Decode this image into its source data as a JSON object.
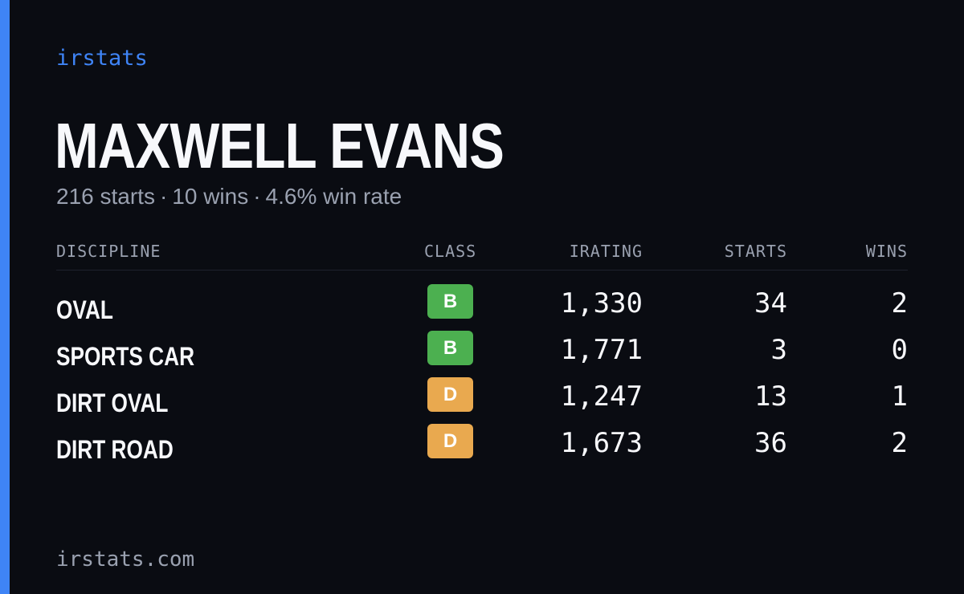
{
  "brand": "irstats",
  "driver": {
    "name": "MAXWELL EVANS"
  },
  "summary": {
    "starts": "216 starts",
    "wins": "10 wins",
    "win_rate": "4.6% win rate",
    "separator": "·"
  },
  "table": {
    "headers": {
      "discipline": "DISCIPLINE",
      "class": "CLASS",
      "irating": "IRATING",
      "starts": "STARTS",
      "wins": "WINS"
    },
    "rows": [
      {
        "discipline": "OVAL",
        "class": "B",
        "class_color": "#4cb050",
        "irating": "1,330",
        "starts": "34",
        "wins": "2"
      },
      {
        "discipline": "SPORTS CAR",
        "class": "B",
        "class_color": "#4cb050",
        "irating": "1,771",
        "starts": "3",
        "wins": "0"
      },
      {
        "discipline": "DIRT OVAL",
        "class": "D",
        "class_color": "#e9a94f",
        "irating": "1,247",
        "starts": "13",
        "wins": "1"
      },
      {
        "discipline": "DIRT ROAD",
        "class": "D",
        "class_color": "#e9a94f",
        "irating": "1,673",
        "starts": "36",
        "wins": "2"
      }
    ]
  },
  "footer": {
    "url": "irstats.com"
  },
  "colors": {
    "accent": "#3f84f6",
    "background": "#0a0c12",
    "muted": "#9aa1b0",
    "class_b": "#4cb050",
    "class_d": "#e9a94f"
  }
}
